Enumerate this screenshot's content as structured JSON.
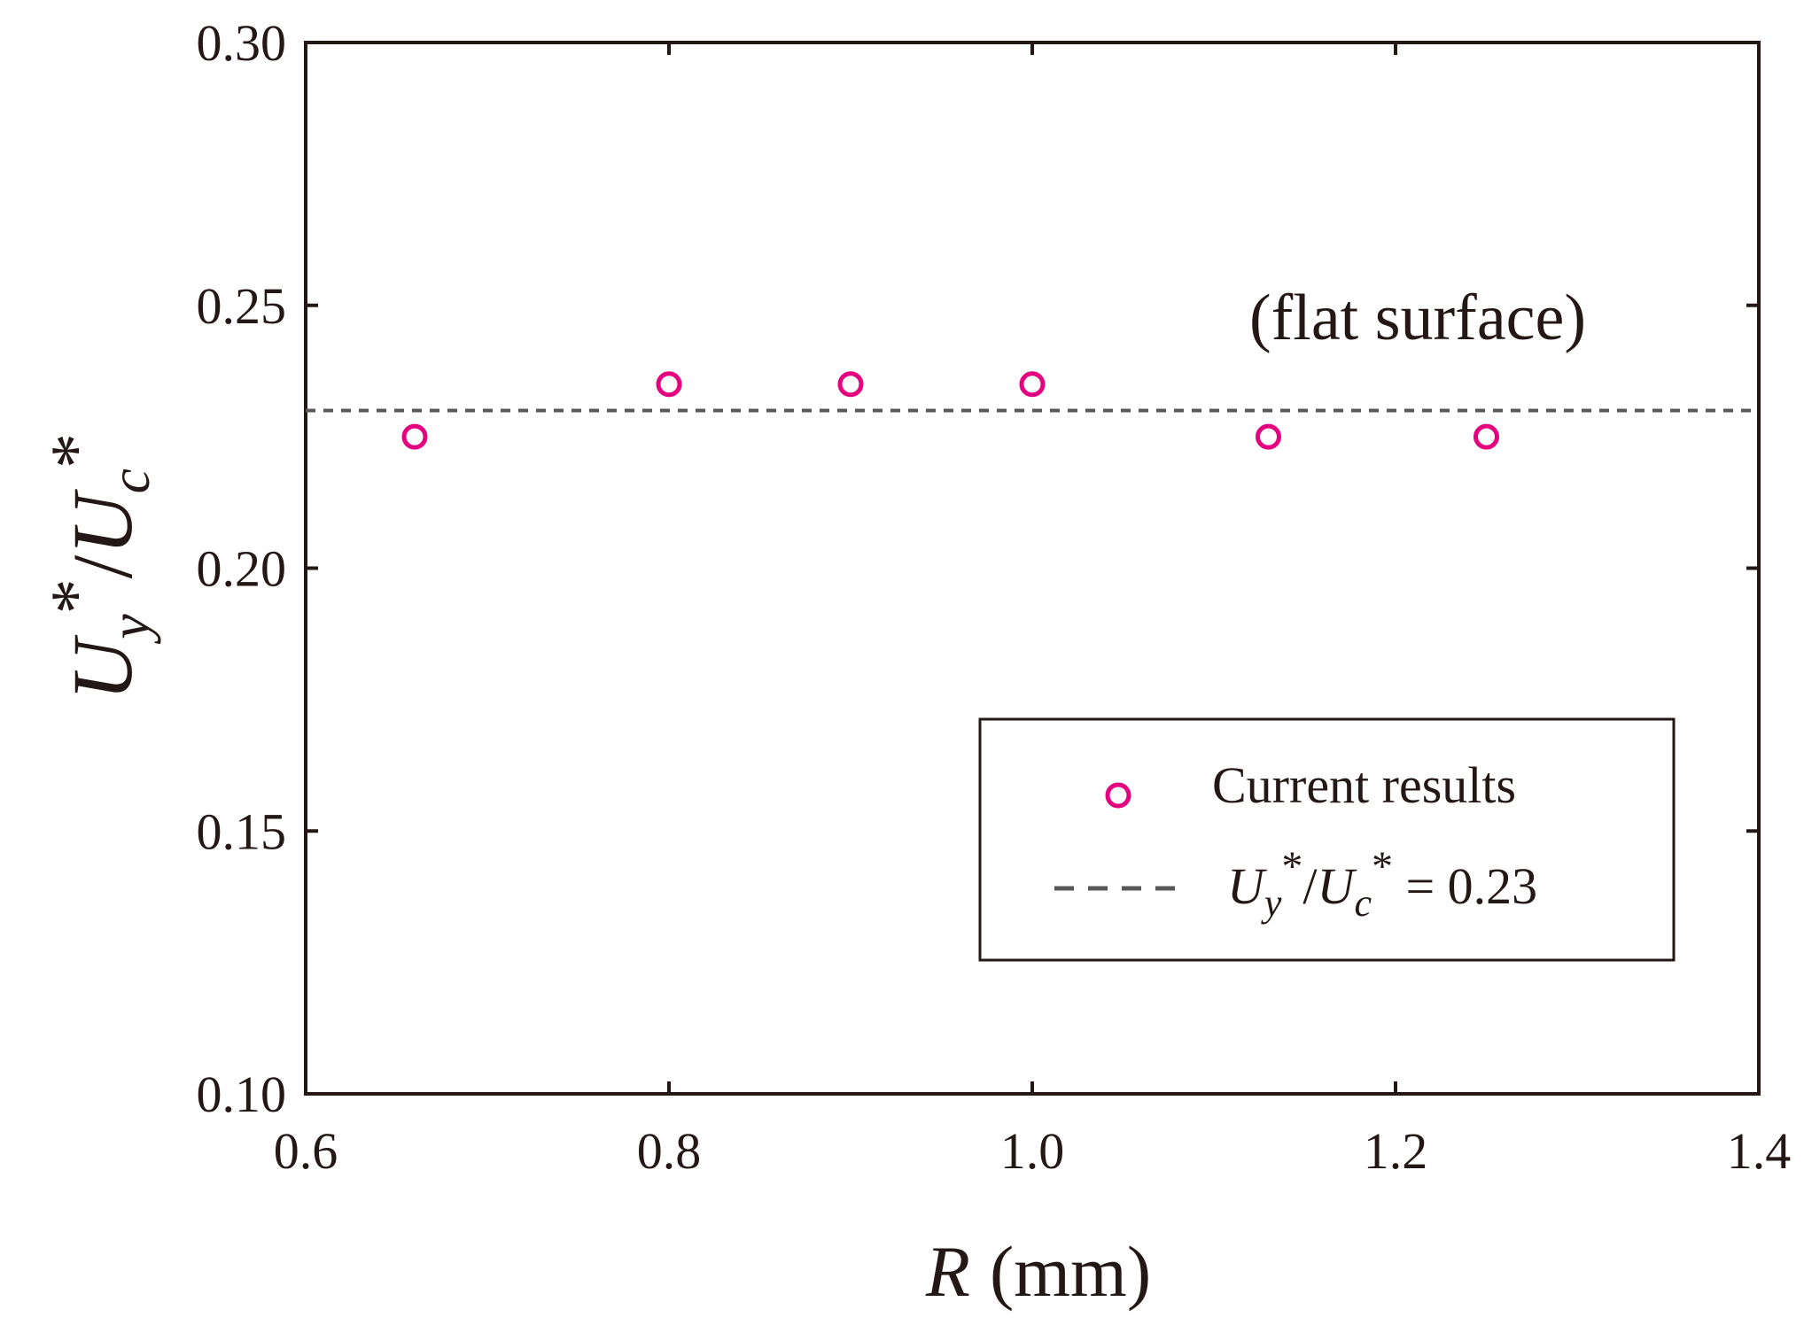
{
  "chart_data": {
    "type": "scatter",
    "title": "",
    "xlabel": {
      "var": "R",
      "unit": "(mm)"
    },
    "ylabel": {
      "U1": "U",
      "sub1": "y",
      "star1": "*",
      "slash": "/",
      "U2": "U",
      "sub2": "c",
      "star2": "*"
    },
    "xlim": [
      0.6,
      1.4
    ],
    "ylim": [
      0.1,
      0.3
    ],
    "xticks": [
      0.6,
      0.8,
      1.0,
      1.2,
      1.4
    ],
    "xtick_labels": [
      "0.6",
      "0.8",
      "1.0",
      "1.2",
      "1.4"
    ],
    "yticks": [
      0.1,
      0.15,
      0.2,
      0.25,
      0.3
    ],
    "ytick_labels": [
      "0.10",
      "0.15",
      "0.20",
      "0.25",
      "0.30"
    ],
    "grid": false,
    "series": [
      {
        "name": "Current results",
        "marker": "open-circle",
        "color": "#e4007f",
        "x": [
          0.66,
          0.8,
          0.9,
          1.0,
          1.13,
          1.25
        ],
        "y": [
          0.225,
          0.235,
          0.235,
          0.235,
          0.225,
          0.225
        ]
      }
    ],
    "reference_line": {
      "y": 0.23,
      "style": "dashed",
      "color": "#595757",
      "legend": {
        "U1": "U",
        "sub1": "y",
        "star1": "*",
        "slash": "/",
        "U2": "U",
        "sub2": "c",
        "star2": "*",
        "eq": " = 0.23"
      }
    },
    "annotation": "(flat surface)",
    "legend_position": "bottom-right"
  }
}
